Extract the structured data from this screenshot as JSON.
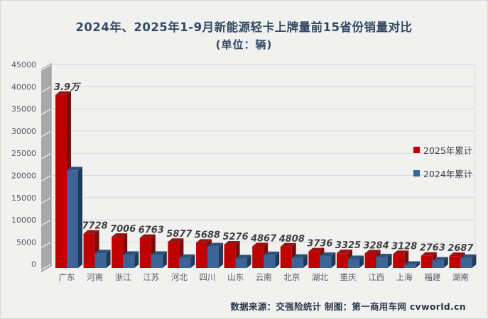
{
  "title": {
    "line1": "2024年、2025年1-9月新能源轻卡上牌量前15省份销量对比",
    "line2": "(单位：辆)"
  },
  "legend": {
    "items": [
      {
        "label": "2025年累计",
        "color": "#C00000"
      },
      {
        "label": "2024年累计",
        "color": "#3A6596"
      }
    ]
  },
  "footer": {
    "text": "数据来源：交强险统计 制图：第一商用车网 cvworld.cn"
  },
  "chart_data": {
    "type": "bar",
    "title": "2024年、2025年1-9月新能源轻卡上牌量前15省份销量对比",
    "subtitle": "(单位：辆)",
    "categories": [
      "广东",
      "河南",
      "浙江",
      "江苏",
      "河北",
      "四川",
      "山东",
      "云南",
      "北京",
      "湖北",
      "重庆",
      "江西",
      "上海",
      "福建",
      "湖南"
    ],
    "series": [
      {
        "name": "2025年累计",
        "color": "#C00000",
        "color_top": "#9A1212",
        "color_side": "#7A0C0C",
        "values": [
          39000,
          7728,
          7006,
          6763,
          5877,
          5688,
          5276,
          4867,
          4808,
          3736,
          3325,
          3284,
          3128,
          2763,
          2687
        ],
        "labels": [
          "3.9万",
          "7728",
          "7006",
          "6763",
          "5877",
          "5688",
          "5276",
          "4867",
          "4808",
          "3736",
          "3325",
          "3284",
          "3128",
          "2763",
          "2687"
        ]
      },
      {
        "name": "2024年累计",
        "color": "#3A6596",
        "color_top": "#2E527C",
        "color_side": "#1F3A58",
        "values": [
          22000,
          3300,
          2950,
          2950,
          2250,
          4850,
          2150,
          2900,
          2300,
          2700,
          2000,
          2400,
          700,
          1650,
          2250
        ],
        "labels": []
      }
    ],
    "y_axis": {
      "ticks": [
        0,
        5000,
        10000,
        15000,
        20000,
        25000,
        30000,
        35000,
        40000,
        45000
      ],
      "min": 0,
      "max": 45000
    },
    "grid": true,
    "legend_position": "right-middle",
    "style": "3d-bars"
  }
}
